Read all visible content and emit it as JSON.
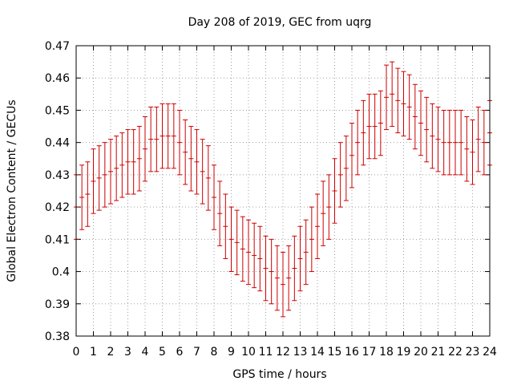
{
  "chart_data": {
    "type": "line",
    "title": "Day 208 of 2019, GEC from uqrg",
    "xlabel": "GPS time / hours",
    "ylabel": "Global Electron Content / GECUs",
    "xlim": [
      0,
      24
    ],
    "ylim": [
      0.38,
      0.47
    ],
    "x_ticks": [
      "0",
      "1",
      "2",
      "3",
      "4",
      "5",
      "6",
      "7",
      "8",
      "9",
      "10",
      "11",
      "12",
      "13",
      "14",
      "15",
      "16",
      "17",
      "18",
      "19",
      "20",
      "21",
      "22",
      "23",
      "24"
    ],
    "y_ticks": [
      "0.38",
      "0.39",
      "0.4",
      "0.41",
      "0.42",
      "0.43",
      "0.44",
      "0.45",
      "0.46",
      "0.47"
    ],
    "grid": true,
    "error_bars": true,
    "color": "#cc0000",
    "series": [
      {
        "x": [
          0,
          0.333,
          0.667,
          1,
          1.333,
          1.667,
          2,
          2.333,
          2.667,
          3,
          3.333,
          3.667,
          4,
          4.333,
          4.667,
          5,
          5.333,
          5.667,
          6,
          6.333,
          6.667,
          7,
          7.333,
          7.667,
          8,
          8.333,
          8.667,
          9,
          9.333,
          9.667,
          10,
          10.333,
          10.667,
          11,
          11.333,
          11.667,
          12,
          12.333,
          12.667,
          13,
          13.333,
          13.667,
          14,
          14.333,
          14.667,
          15,
          15.333,
          15.667,
          16,
          16.333,
          16.667,
          17,
          17.333,
          17.667,
          18,
          18.333,
          18.667,
          19,
          19.333,
          19.667,
          20,
          20.333,
          20.667,
          21,
          21.333,
          21.667,
          22,
          22.333,
          22.667,
          23,
          23.333,
          23.667,
          24
        ],
        "y": [
          0.42,
          0.423,
          0.424,
          0.428,
          0.429,
          0.43,
          0.431,
          0.432,
          0.433,
          0.434,
          0.434,
          0.435,
          0.438,
          0.441,
          0.441,
          0.442,
          0.442,
          0.442,
          0.44,
          0.437,
          0.435,
          0.434,
          0.431,
          0.429,
          0.423,
          0.418,
          0.414,
          0.41,
          0.409,
          0.407,
          0.406,
          0.405,
          0.404,
          0.401,
          0.4,
          0.398,
          0.396,
          0.398,
          0.401,
          0.404,
          0.406,
          0.41,
          0.414,
          0.418,
          0.42,
          0.425,
          0.43,
          0.432,
          0.436,
          0.44,
          0.443,
          0.445,
          0.445,
          0.446,
          0.454,
          0.455,
          0.453,
          0.452,
          0.451,
          0.448,
          0.446,
          0.444,
          0.442,
          0.441,
          0.44,
          0.44,
          0.44,
          0.44,
          0.438,
          0.437,
          0.441,
          0.44,
          0.443
        ],
        "error": [
          0.01,
          0.01,
          0.01,
          0.01,
          0.01,
          0.01,
          0.01,
          0.01,
          0.01,
          0.01,
          0.01,
          0.01,
          0.01,
          0.01,
          0.01,
          0.01,
          0.01,
          0.01,
          0.01,
          0.01,
          0.01,
          0.01,
          0.01,
          0.01,
          0.01,
          0.01,
          0.01,
          0.01,
          0.01,
          0.01,
          0.01,
          0.01,
          0.01,
          0.01,
          0.01,
          0.01,
          0.01,
          0.01,
          0.01,
          0.01,
          0.01,
          0.01,
          0.01,
          0.01,
          0.01,
          0.01,
          0.01,
          0.01,
          0.01,
          0.01,
          0.01,
          0.01,
          0.01,
          0.01,
          0.01,
          0.01,
          0.01,
          0.01,
          0.01,
          0.01,
          0.01,
          0.01,
          0.01,
          0.01,
          0.01,
          0.01,
          0.01,
          0.01,
          0.01,
          0.01,
          0.01,
          0.01,
          0.01
        ]
      }
    ]
  }
}
